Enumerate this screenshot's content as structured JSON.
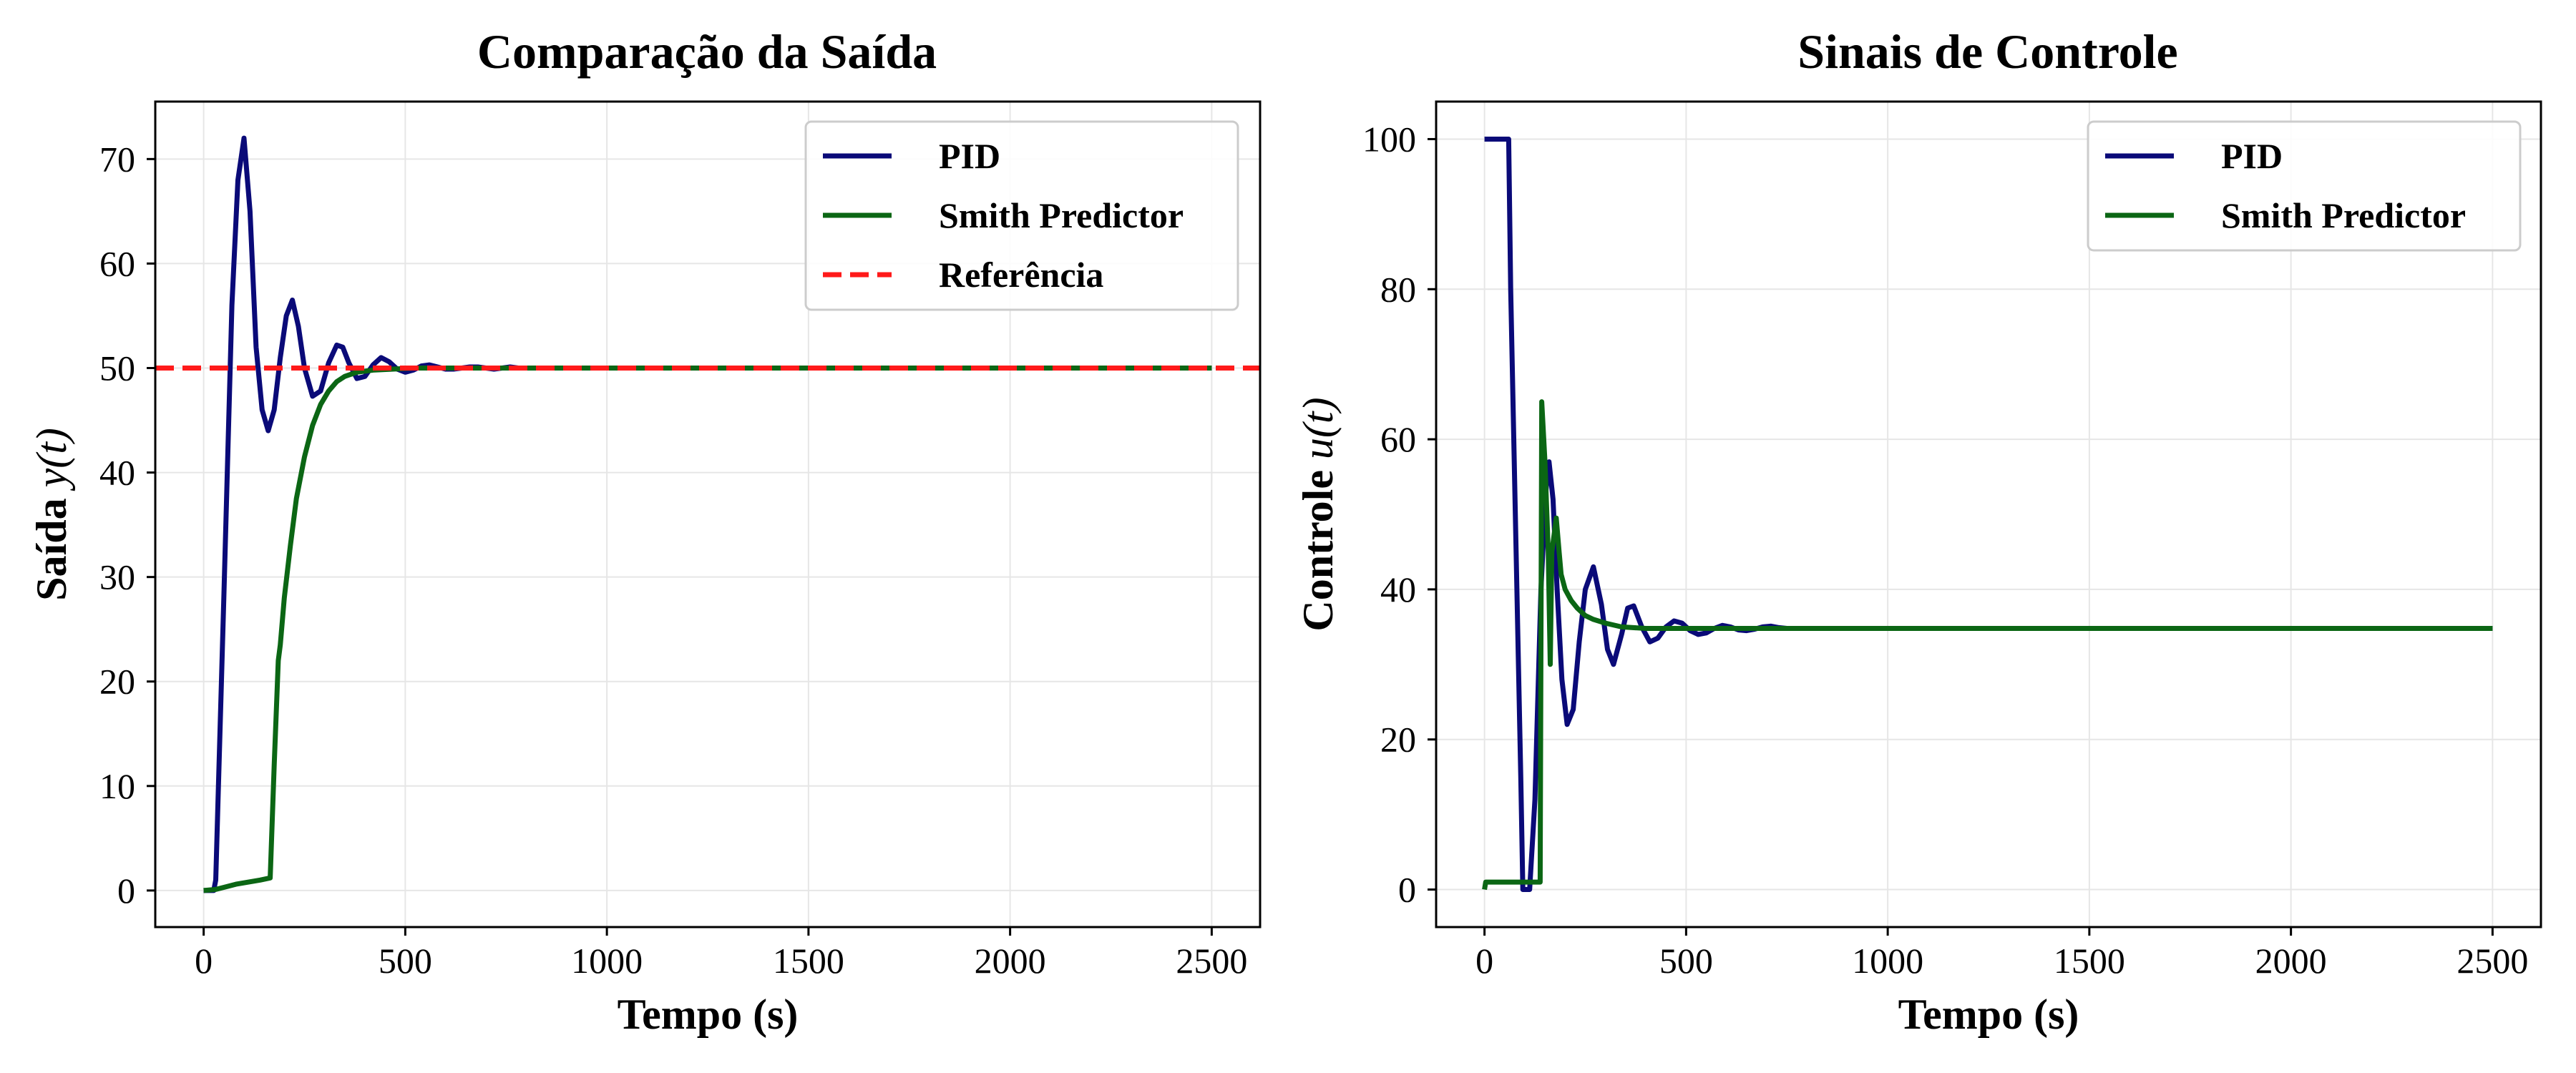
{
  "figure": {
    "charts": [
      {
        "title": "Comparação da Saída",
        "xlabel": "Tempo (s)",
        "ylabel_text": "Saída ",
        "ylabel_math": "y(t)"
      },
      {
        "title": "Sinais de Controle",
        "xlabel": "Tempo (s)",
        "ylabel_text": "Controle ",
        "ylabel_math": "u(t)"
      }
    ]
  },
  "colors": {
    "pid": "#0a0a78",
    "smith": "#0b6614",
    "reference": "#ff1a1a",
    "grid": "#e6e6e6",
    "axis": "#000000"
  },
  "chart_data": [
    {
      "type": "line",
      "title": "Comparação da Saída",
      "xlabel": "Tempo (s)",
      "ylabel": "Saída y(t)",
      "xlim": [
        -120,
        2620
      ],
      "ylim": [
        -3.5,
        75.5
      ],
      "xticks": [
        0,
        500,
        1000,
        1500,
        2000,
        2500
      ],
      "yticks": [
        0,
        10,
        20,
        30,
        40,
        50,
        60,
        70
      ],
      "grid": true,
      "legend_position": "top-right",
      "series": [
        {
          "name": "PID",
          "style": "solid",
          "x": [
            0,
            25,
            30,
            50,
            70,
            85,
            100,
            115,
            130,
            145,
            160,
            175,
            190,
            205,
            220,
            235,
            250,
            270,
            290,
            310,
            330,
            345,
            360,
            380,
            400,
            420,
            440,
            460,
            480,
            500,
            520,
            540,
            560,
            580,
            600,
            620,
            640,
            660,
            680,
            700,
            720,
            740,
            760,
            780,
            800,
            850,
            900,
            1000,
            2500
          ],
          "y": [
            0,
            0,
            1,
            28,
            56,
            68,
            72,
            65,
            52,
            46,
            44,
            46,
            51,
            55,
            56.5,
            54,
            50,
            47.3,
            47.8,
            50.5,
            52.2,
            52,
            50.5,
            49,
            49.2,
            50.3,
            51,
            50.6,
            49.9,
            49.6,
            49.8,
            50.2,
            50.3,
            50.1,
            49.9,
            49.9,
            50,
            50.1,
            50.1,
            50,
            49.9,
            50,
            50.1,
            50,
            50,
            50,
            50,
            50,
            50
          ]
        },
        {
          "name": "Smith Predictor",
          "style": "solid",
          "x": [
            0,
            30,
            50,
            80,
            110,
            140,
            165,
            175,
            185,
            190,
            200,
            215,
            230,
            250,
            270,
            290,
            310,
            330,
            350,
            380,
            420,
            470,
            520,
            600,
            700,
            800,
            1000,
            2500
          ],
          "y": [
            0,
            0.1,
            0.3,
            0.6,
            0.8,
            1,
            1.2,
            12,
            22,
            23.5,
            28,
            33,
            37.5,
            41.5,
            44.5,
            46.5,
            47.8,
            48.7,
            49.2,
            49.6,
            49.8,
            49.9,
            50,
            50,
            50,
            50,
            50,
            50
          ]
        },
        {
          "name": "Referência",
          "style": "dashed",
          "x": [
            -120,
            2620
          ],
          "y": [
            50,
            50
          ]
        }
      ]
    },
    {
      "type": "line",
      "title": "Sinais de Controle",
      "xlabel": "Tempo (s)",
      "ylabel": "Controle u(t)",
      "xlim": [
        -120,
        2620
      ],
      "ylim": [
        -5,
        105
      ],
      "xticks": [
        0,
        500,
        1000,
        1500,
        2000,
        2500
      ],
      "yticks": [
        0,
        20,
        40,
        60,
        80,
        100
      ],
      "grid": true,
      "legend_position": "top-right",
      "series": [
        {
          "name": "PID",
          "style": "solid",
          "x": [
            0,
            60,
            65,
            90,
            95,
            105,
            112,
            125,
            140,
            152,
            160,
            170,
            180,
            192,
            205,
            220,
            235,
            250,
            270,
            290,
            305,
            320,
            340,
            355,
            370,
            390,
            410,
            430,
            450,
            470,
            490,
            510,
            530,
            550,
            570,
            590,
            610,
            630,
            650,
            670,
            690,
            710,
            730,
            750,
            770,
            800,
            850,
            900,
            1000,
            2500
          ],
          "y": [
            100,
            100,
            80,
            15,
            0,
            0,
            0,
            12,
            40,
            53,
            57,
            52,
            40,
            28,
            22,
            24,
            33,
            40,
            43,
            38,
            32,
            30,
            34,
            37.5,
            37.8,
            35,
            33,
            33.5,
            35,
            35.8,
            35.5,
            34.5,
            34,
            34.2,
            34.8,
            35.2,
            35,
            34.6,
            34.5,
            34.7,
            35,
            35.1,
            34.9,
            34.8,
            34.8,
            34.8,
            34.8,
            34.8,
            34.8,
            34.8
          ]
        },
        {
          "name": "Smith Predictor",
          "style": "solid",
          "x": [
            0,
            3,
            20,
            60,
            100,
            130,
            138,
            142,
            150,
            158,
            163,
            167,
            172,
            178,
            185,
            190,
            200,
            215,
            230,
            250,
            270,
            300,
            340,
            400,
            500,
            700,
            2500
          ],
          "y": [
            0,
            1,
            1,
            1,
            1,
            1,
            1,
            65,
            57,
            45,
            30,
            45,
            47,
            49.5,
            45,
            42,
            40,
            38.5,
            37.5,
            36.5,
            36,
            35.5,
            35,
            34.8,
            34.8,
            34.8,
            34.8
          ]
        }
      ]
    }
  ]
}
